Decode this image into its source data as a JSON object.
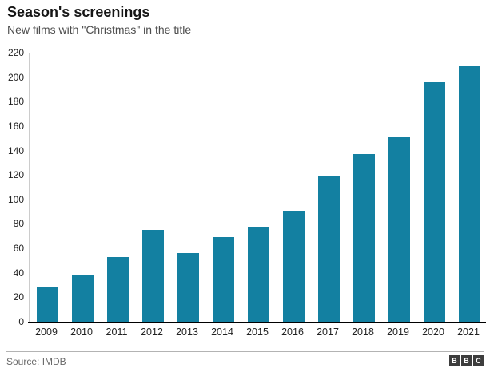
{
  "header": {
    "title": "Season's screenings",
    "subtitle": "New films with \"Christmas\" in the title"
  },
  "chart_data": {
    "type": "bar",
    "title": "Season's screenings",
    "subtitle": "New films with \"Christmas\" in the title",
    "categories": [
      "2009",
      "2010",
      "2011",
      "2012",
      "2013",
      "2014",
      "2015",
      "2016",
      "2017",
      "2018",
      "2019",
      "2020",
      "2021"
    ],
    "values": [
      29,
      38,
      53,
      75,
      56,
      69,
      78,
      91,
      119,
      137,
      151,
      196,
      209
    ],
    "xlabel": "",
    "ylabel": "",
    "ylim": [
      0,
      220
    ],
    "ytick_step": 20,
    "grid": false,
    "legend": "none",
    "bar_color": "#1380A1"
  },
  "footer": {
    "source": "Source: IMDB",
    "logo_letters": [
      "B",
      "B",
      "C"
    ]
  },
  "colors": {
    "bar": "#1380A1",
    "title_text": "#161616",
    "subtitle_text": "#4d4d4d",
    "axis_label": "#222222",
    "axis_line": "#cccccc",
    "baseline": "#000000",
    "divider": "#b3b3b3",
    "source_text": "#696969",
    "logo_bg": "#3d3d3d"
  }
}
